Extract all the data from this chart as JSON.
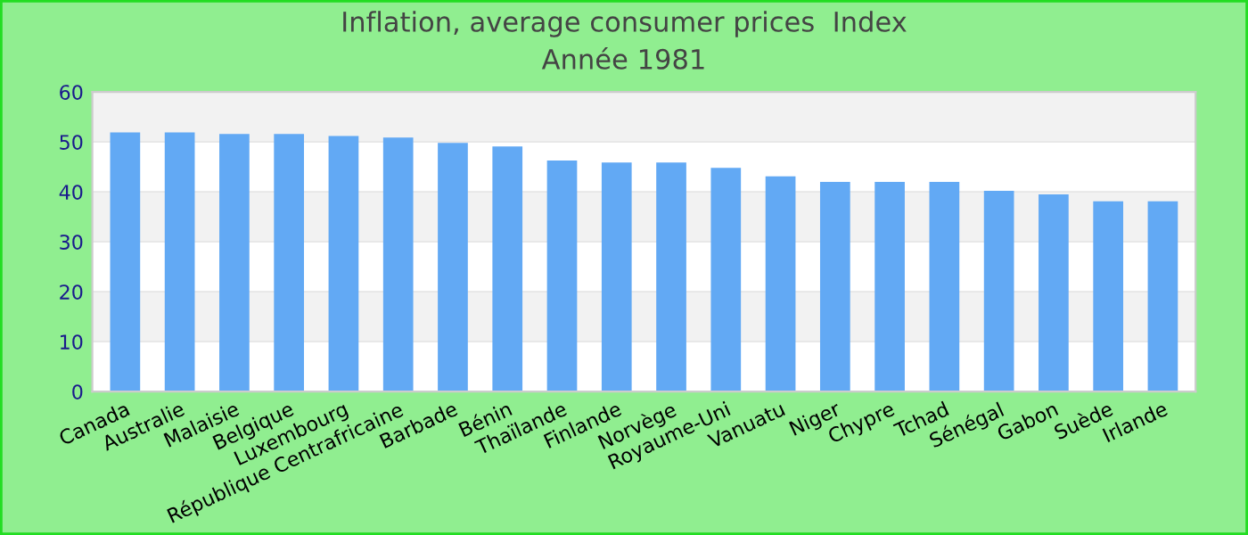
{
  "chart_data": {
    "type": "bar",
    "title": "Inflation, average consumer prices  Index",
    "subtitle": "Année 1981",
    "categories": [
      "Canada",
      "Australie",
      "Malaisie",
      "Belgique",
      "Luxembourg",
      "République Centrafricaine",
      "Barbade",
      "Bénin",
      "Thaïlande",
      "Finlande",
      "Norvège",
      "Royaume-Uni",
      "Vanuatu",
      "Niger",
      "Chypre",
      "Tchad",
      "Sénégal",
      "Gabon",
      "Suède",
      "Irlande"
    ],
    "values": [
      51.9,
      51.9,
      51.6,
      51.6,
      51.2,
      50.9,
      49.8,
      49.1,
      46.3,
      45.9,
      45.9,
      44.8,
      43.1,
      42.0,
      42.0,
      42.0,
      40.2,
      39.5,
      38.1,
      38.1
    ],
    "color": "#62a9f4",
    "ylim": [
      0,
      60
    ],
    "yticks": [
      0,
      10,
      20,
      30,
      40,
      50,
      60
    ],
    "grid": "y"
  }
}
